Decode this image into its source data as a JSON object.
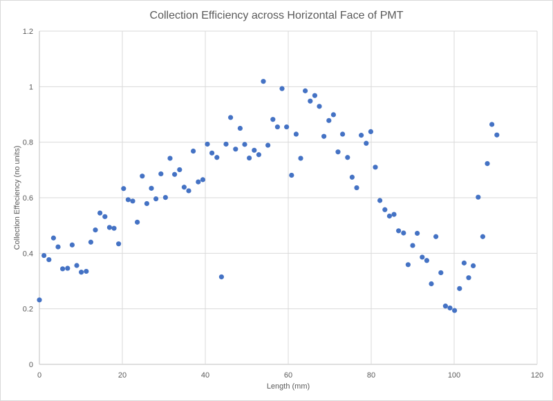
{
  "chart_data": {
    "type": "scatter",
    "title": "Collection Efficiency across Horizontal Face of PMT",
    "xlabel": "Length (mm)",
    "ylabel": "Collection Effeciency (no units)",
    "xlim": [
      0,
      120
    ],
    "ylim": [
      0,
      1.2
    ],
    "xticks": [
      "0",
      "20",
      "40",
      "60",
      "80",
      "100",
      "120"
    ],
    "yticks": [
      "0",
      "0.2",
      "0.4",
      "0.6",
      "0.8",
      "1",
      "1.2"
    ],
    "grid": true,
    "legend": "none",
    "marker_color": "#4472c4",
    "series": [
      {
        "x": [
          0,
          1.1,
          2.3,
          3.4,
          4.5,
          5.6,
          6.8,
          7.9,
          9.0,
          10.1,
          11.3,
          12.4,
          13.5,
          14.6,
          15.8,
          16.9,
          18.0,
          19.1,
          20.3,
          21.4,
          22.5,
          23.6,
          24.8,
          25.9,
          27.0,
          28.1,
          29.3,
          30.4,
          31.5,
          32.6,
          33.8,
          34.9,
          36.0,
          37.1,
          38.3,
          39.4,
          40.5,
          41.6,
          42.8,
          43.9,
          45.0,
          46.1,
          47.3,
          48.4,
          49.5,
          50.6,
          51.8,
          52.9,
          54.0,
          55.1,
          56.3,
          57.4,
          58.5,
          59.6,
          60.8,
          61.9,
          63.0,
          64.1,
          65.3,
          66.4,
          67.5,
          68.6,
          69.8,
          70.9,
          72.0,
          73.1,
          74.3,
          75.4,
          76.5,
          77.6,
          78.8,
          79.9,
          81.0,
          82.1,
          83.3,
          84.4,
          85.5,
          86.6,
          87.8,
          88.9,
          90.0,
          91.1,
          92.3,
          93.4,
          94.5,
          95.6,
          96.8,
          97.9,
          99.0,
          100.1,
          101.3,
          102.4,
          103.5,
          104.6,
          105.8,
          106.9,
          108.0,
          109.1,
          110.3
        ],
        "y": [
          0.232,
          0.392,
          0.377,
          0.455,
          0.423,
          0.344,
          0.346,
          0.43,
          0.356,
          0.332,
          0.335,
          0.44,
          0.484,
          0.545,
          0.532,
          0.493,
          0.49,
          0.434,
          0.633,
          0.593,
          0.588,
          0.512,
          0.678,
          0.579,
          0.634,
          0.596,
          0.686,
          0.601,
          0.742,
          0.684,
          0.701,
          0.638,
          0.625,
          0.768,
          0.657,
          0.665,
          0.793,
          0.761,
          0.745,
          0.315,
          0.793,
          0.889,
          0.775,
          0.85,
          0.792,
          0.743,
          0.771,
          0.755,
          1.019,
          0.789,
          0.882,
          0.855,
          0.993,
          0.855,
          0.681,
          0.829,
          0.742,
          0.985,
          0.948,
          0.968,
          0.929,
          0.821,
          0.878,
          0.899,
          0.765,
          0.829,
          0.745,
          0.674,
          0.636,
          0.825,
          0.796,
          0.838,
          0.71,
          0.59,
          0.557,
          0.534,
          0.54,
          0.481,
          0.473,
          0.359,
          0.428,
          0.472,
          0.386,
          0.374,
          0.29,
          0.46,
          0.33,
          0.21,
          0.203,
          0.194,
          0.273,
          0.365,
          0.312,
          0.355,
          0.602,
          0.46,
          0.723,
          0.864,
          0.826
        ]
      }
    ]
  }
}
